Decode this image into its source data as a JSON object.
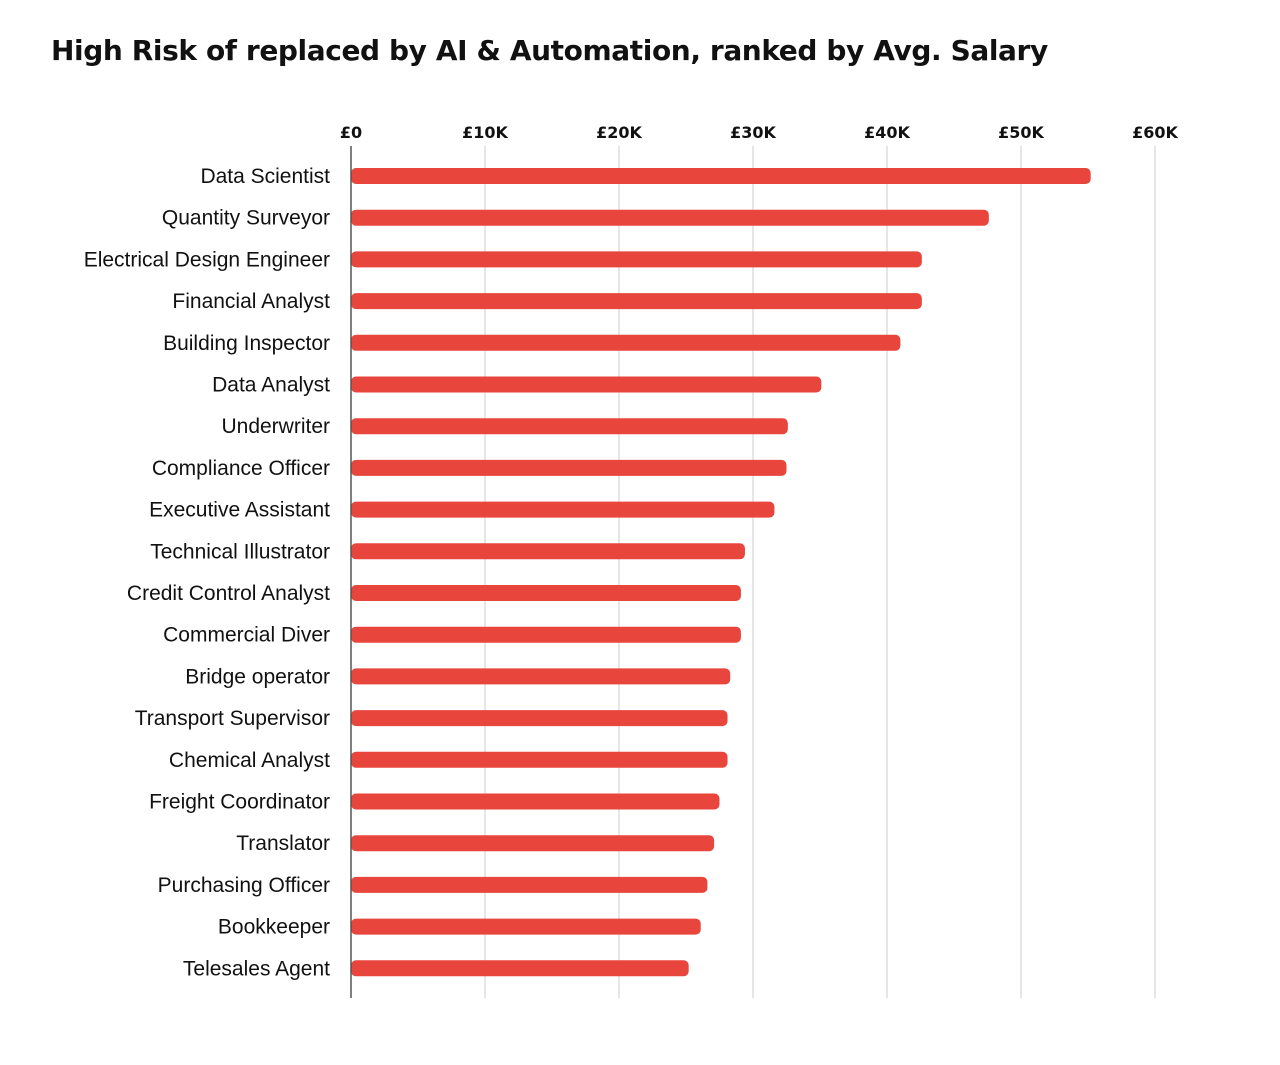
{
  "chart_data": {
    "type": "bar",
    "orientation": "horizontal",
    "title": "High Risk of replaced by AI & Automation, ranked by Avg. Salary",
    "xlabel": "",
    "ylabel": "",
    "xlim": [
      0,
      60000
    ],
    "grid": true,
    "bar_color": "#e8453c",
    "ticks": [
      {
        "value": 0,
        "label": "£0"
      },
      {
        "value": 10000,
        "label": "£10K"
      },
      {
        "value": 20000,
        "label": "£20K"
      },
      {
        "value": 30000,
        "label": "£30K"
      },
      {
        "value": 40000,
        "label": "£40K"
      },
      {
        "value": 50000,
        "label": "£50K"
      },
      {
        "value": 60000,
        "label": "£60K"
      }
    ],
    "categories": [
      "Data Scientist",
      "Quantity Surveyor",
      "Electrical Design Engineer",
      "Financial Analyst",
      "Building Inspector",
      "Data Analyst",
      "Underwriter",
      "Compliance Officer",
      "Executive Assistant",
      "Technical Illustrator",
      "Credit Control Analyst",
      "Commercial Diver",
      "Bridge operator",
      "Transport Supervisor",
      "Chemical Analyst",
      "Freight Coordinator",
      "Translator",
      "Purchasing Officer",
      "Bookkeeper",
      "Telesales Agent"
    ],
    "values": [
      55200,
      47600,
      42600,
      42600,
      41000,
      35100,
      32600,
      32500,
      31600,
      29400,
      29100,
      29100,
      28300,
      28100,
      28100,
      27500,
      27100,
      26600,
      26100,
      25200
    ]
  }
}
